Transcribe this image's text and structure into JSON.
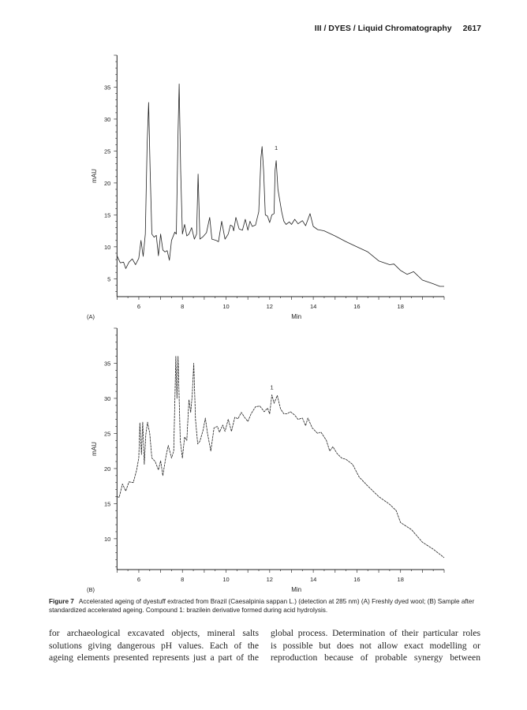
{
  "header": {
    "running_title": "III / DYES / Liquid Chromatography",
    "page_number": "2617"
  },
  "chart_data": [
    {
      "type": "line",
      "panel_label": "(A)",
      "xlabel": "Min",
      "ylabel": "mAU",
      "xlim": [
        5,
        20
      ],
      "ylim": [
        2.2,
        40
      ],
      "xticks": [
        6,
        8,
        10,
        12,
        14,
        16,
        18
      ],
      "yticks": [
        5,
        10,
        15,
        20,
        25,
        30,
        35
      ],
      "annotations": [
        {
          "text": "1",
          "x": 12.3,
          "y": 25.2
        }
      ],
      "x": [
        5.0,
        5.15,
        5.3,
        5.4,
        5.55,
        5.7,
        5.85,
        6.0,
        6.1,
        6.2,
        6.3,
        6.38,
        6.45,
        6.52,
        6.6,
        6.7,
        6.8,
        6.9,
        7.0,
        7.1,
        7.2,
        7.3,
        7.4,
        7.5,
        7.65,
        7.72,
        7.8,
        7.85,
        7.92,
        8.0,
        8.1,
        8.2,
        8.3,
        8.42,
        8.55,
        8.65,
        8.72,
        8.8,
        8.95,
        9.1,
        9.25,
        9.35,
        9.55,
        9.65,
        9.8,
        9.95,
        10.1,
        10.2,
        10.3,
        10.35,
        10.45,
        10.6,
        10.75,
        10.88,
        11.0,
        11.1,
        11.2,
        11.35,
        11.5,
        11.6,
        11.65,
        11.72,
        11.8,
        11.9,
        12.0,
        12.1,
        12.2,
        12.25,
        12.3,
        12.38,
        12.45,
        12.55,
        12.65,
        12.75,
        12.9,
        13.0,
        13.15,
        13.3,
        13.5,
        13.65,
        13.85,
        14.0,
        14.2,
        14.5,
        15.0,
        15.5,
        16.0,
        16.5,
        17.0,
        17.5,
        17.7,
        18.0,
        18.3,
        18.6,
        19.0,
        19.5,
        19.8,
        20.0
      ],
      "y": [
        8.6,
        7.5,
        7.6,
        6.6,
        7.6,
        8.1,
        7.2,
        8.2,
        11.0,
        8.5,
        12,
        26,
        32.6,
        22,
        12,
        11.5,
        11.8,
        8.6,
        12,
        9.5,
        9.2,
        9.4,
        7.9,
        11,
        12.3,
        12,
        28,
        35.5,
        22,
        12,
        13.5,
        11.7,
        12,
        13,
        11.2,
        12,
        21.4,
        11.2,
        11.6,
        12.2,
        14.6,
        11.2,
        11,
        10.8,
        14,
        11.2,
        12,
        13.4,
        13.2,
        12.5,
        14.6,
        12.8,
        12.6,
        14.3,
        12.6,
        14,
        13.2,
        13.4,
        15.5,
        24,
        25.7,
        22,
        15,
        14.8,
        13.8,
        15,
        15.2,
        22,
        23.5,
        19,
        17.5,
        15.5,
        14,
        13.5,
        13.9,
        13.5,
        14.3,
        13.6,
        14.1,
        13.3,
        15.2,
        13.2,
        12.7,
        12.5,
        11.7,
        10.8,
        10.0,
        9.2,
        7.8,
        7.2,
        7.3,
        6.3,
        5.7,
        6.1,
        4.8,
        4.2,
        3.8,
        3.8
      ]
    },
    {
      "type": "line",
      "panel_label": "(B)",
      "xlabel": "Min",
      "ylabel": "mAU",
      "xlim": [
        5,
        20
      ],
      "ylim": [
        5.6,
        40
      ],
      "xticks": [
        6,
        8,
        10,
        12,
        14,
        16,
        18
      ],
      "yticks": [
        10,
        15,
        20,
        25,
        30,
        35
      ],
      "annotations": [
        {
          "text": "1",
          "x": 12.1,
          "y": 31.3
        }
      ],
      "x": [
        5.0,
        5.1,
        5.25,
        5.4,
        5.55,
        5.75,
        5.9,
        6.0,
        6.05,
        6.12,
        6.18,
        6.25,
        6.32,
        6.4,
        6.5,
        6.6,
        6.75,
        6.9,
        7.0,
        7.1,
        7.25,
        7.35,
        7.5,
        7.6,
        7.7,
        7.75,
        7.8,
        7.9,
        8.0,
        8.1,
        8.2,
        8.3,
        8.38,
        8.45,
        8.52,
        8.6,
        8.7,
        8.8,
        8.95,
        9.05,
        9.15,
        9.3,
        9.45,
        9.6,
        9.7,
        9.85,
        9.95,
        10.1,
        10.25,
        10.4,
        10.55,
        10.7,
        10.85,
        11.0,
        11.15,
        11.35,
        11.55,
        11.75,
        11.9,
        12.0,
        12.1,
        12.2,
        12.35,
        12.5,
        12.65,
        12.8,
        12.95,
        13.15,
        13.3,
        13.5,
        13.65,
        13.75,
        13.95,
        14.2,
        14.35,
        14.6,
        14.75,
        14.9,
        15.1,
        15.3,
        15.5,
        15.8,
        16.1,
        16.5,
        17.0,
        17.5,
        17.8,
        18.0,
        18.5,
        19.0,
        19.5,
        20.0
      ],
      "y": [
        16,
        15.9,
        17.8,
        16.8,
        18.1,
        18,
        19.8,
        21.5,
        26.5,
        22,
        26.6,
        20.6,
        24.8,
        26.6,
        25,
        21.5,
        21,
        19.8,
        21.1,
        19,
        21.8,
        23.3,
        21.5,
        22.5,
        36,
        30,
        36,
        24,
        21.5,
        24.5,
        24,
        29.8,
        28,
        30.5,
        35,
        27,
        23.5,
        23.9,
        25.5,
        27.2,
        25,
        22.5,
        25.8,
        26,
        25.2,
        26.2,
        25.3,
        27,
        25.3,
        27.3,
        27.1,
        28,
        27.3,
        26.7,
        27.8,
        28.8,
        28.9,
        28.1,
        28.6,
        27.8,
        30.5,
        29.3,
        30.4,
        28.5,
        27.8,
        27.8,
        28.1,
        27.6,
        27,
        27.2,
        26.1,
        27.2,
        25.8,
        25,
        25.2,
        24,
        22.5,
        23.1,
        22.1,
        21.5,
        21.3,
        20.6,
        18.8,
        17.5,
        16,
        14.9,
        14,
        12.3,
        11.3,
        9.5,
        8.5,
        7.3
      ]
    }
  ],
  "caption": {
    "label": "Figure 7",
    "text": "Accelerated ageing of dyestuff extracted from Brazil (Caesalpinia sappan L.) (detection at 285 nm) (A)  Freshly dyed wool; (B)  Sample after standardized accelerated ageing. Compound 1: brazilein derivative formed during acid hydrolysis."
  },
  "body": {
    "left_lines": [
      "for archaeological excavated objects, mineral salts",
      "solutions giving dangerous pH values. Each of the",
      "ageing elements presented represents just a part of the"
    ],
    "right_lines": [
      "global process. Determination of their particular roles",
      "is possible but does not allow exact modelling or",
      "reproduction because of probable synergy between"
    ]
  }
}
